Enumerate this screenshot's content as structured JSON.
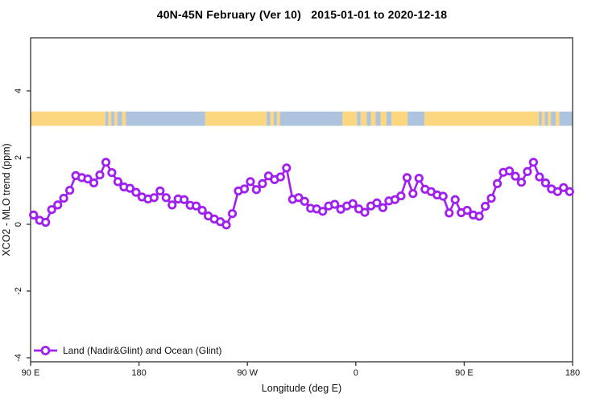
{
  "window": {
    "title": "40N-45N February (Ver 10)   2015-01-01 to 2020-12-18"
  },
  "chart_data": {
    "type": "line",
    "title": "40N-45N February (Ver 10)   2015-01-01 to 2020-12-18",
    "xlabel": "Longitude (deg E)",
    "ylabel": "XCO2 - MLO trend (ppm)",
    "xlim": [
      90,
      540
    ],
    "ylim": [
      -4.6,
      5.6
    ],
    "grid": false,
    "x_ticks": [
      {
        "lon": 90,
        "label": "90 E"
      },
      {
        "lon": 180,
        "label": "180"
      },
      {
        "lon": 270,
        "label": "90 W"
      },
      {
        "lon": 360,
        "label": "0"
      },
      {
        "lon": 450,
        "label": "90 E"
      },
      {
        "lon": 540,
        "label": "180"
      }
    ],
    "y_ticks": [
      {
        "value": 4,
        "label": "4"
      },
      {
        "value": 2,
        "label": "2"
      },
      {
        "value": 0,
        "label": "0"
      },
      {
        "value": -2,
        "label": "-2"
      },
      {
        "value": -4,
        "label": "-4"
      }
    ],
    "legend": {
      "position": "bottom-left",
      "entries": [
        {
          "label": "Land (Nadir&Glint) and Ocean (Glint)",
          "color": "#A020F0",
          "marker": "open-circle"
        }
      ]
    },
    "colors": {
      "series": "#A020F0",
      "land": "#FCD77F",
      "ocean": "#AEC3DE",
      "axis": "#333333",
      "text": "#111111"
    },
    "map_strip": {
      "description": "land/ocean strip for 40N-45N latitude band",
      "y_range_ppm": [
        2.95,
        3.38
      ],
      "segments": [
        {
          "from": 90,
          "to": 152,
          "type": "land"
        },
        {
          "from": 152,
          "to": 154.5,
          "type": "ocean"
        },
        {
          "from": 154.5,
          "to": 157,
          "type": "land"
        },
        {
          "from": 157,
          "to": 159.5,
          "type": "ocean"
        },
        {
          "from": 159.5,
          "to": 162,
          "type": "land"
        },
        {
          "from": 162,
          "to": 166,
          "type": "ocean"
        },
        {
          "from": 166,
          "to": 169,
          "type": "land"
        },
        {
          "from": 169,
          "to": 235,
          "type": "ocean"
        },
        {
          "from": 235,
          "to": 286,
          "type": "land"
        },
        {
          "from": 286,
          "to": 289,
          "type": "ocean"
        },
        {
          "from": 289,
          "to": 292,
          "type": "land"
        },
        {
          "from": 292,
          "to": 294.5,
          "type": "ocean"
        },
        {
          "from": 294.5,
          "to": 297,
          "type": "land"
        },
        {
          "from": 297,
          "to": 349,
          "type": "ocean"
        },
        {
          "from": 349,
          "to": 361,
          "type": "land"
        },
        {
          "from": 361,
          "to": 364,
          "type": "ocean"
        },
        {
          "from": 364,
          "to": 369,
          "type": "land"
        },
        {
          "from": 369,
          "to": 372.5,
          "type": "ocean"
        },
        {
          "from": 372.5,
          "to": 376.5,
          "type": "land"
        },
        {
          "from": 376.5,
          "to": 380.5,
          "type": "ocean"
        },
        {
          "from": 380.5,
          "to": 385.5,
          "type": "land"
        },
        {
          "from": 385.5,
          "to": 389.5,
          "type": "ocean"
        },
        {
          "from": 389.5,
          "to": 403,
          "type": "land"
        },
        {
          "from": 403,
          "to": 417,
          "type": "ocean"
        },
        {
          "from": 417,
          "to": 512,
          "type": "land"
        },
        {
          "from": 512,
          "to": 514.5,
          "type": "ocean"
        },
        {
          "from": 514.5,
          "to": 517,
          "type": "land"
        },
        {
          "from": 517,
          "to": 519.5,
          "type": "ocean"
        },
        {
          "from": 519.5,
          "to": 522,
          "type": "land"
        },
        {
          "from": 522,
          "to": 526,
          "type": "ocean"
        },
        {
          "from": 526,
          "to": 529,
          "type": "land"
        },
        {
          "from": 529,
          "to": 540,
          "type": "ocean"
        }
      ]
    },
    "series": [
      {
        "name": "Land (Nadir&Glint) and Ocean (Glint)",
        "marker": "open-circle",
        "lon_start_deg_e": 92.5,
        "lon_step_deg": 5,
        "values": [
          0.28,
          0.12,
          0.06,
          0.44,
          0.58,
          0.78,
          1.02,
          1.46,
          1.4,
          1.36,
          1.24,
          1.48,
          1.86,
          1.55,
          1.28,
          1.12,
          1.08,
          0.96,
          0.82,
          0.76,
          0.8,
          1.0,
          0.8,
          0.58,
          0.76,
          0.74,
          0.57,
          0.55,
          0.42,
          0.25,
          0.16,
          0.08,
          -0.02,
          0.32,
          1.0,
          1.06,
          1.28,
          1.04,
          1.22,
          1.45,
          1.34,
          1.42,
          1.69,
          0.75,
          0.8,
          0.69,
          0.48,
          0.46,
          0.39,
          0.55,
          0.6,
          0.45,
          0.55,
          0.62,
          0.46,
          0.36,
          0.55,
          0.64,
          0.5,
          0.7,
          0.74,
          0.85,
          1.4,
          0.92,
          1.38,
          1.05,
          0.98,
          0.88,
          0.84,
          0.34,
          0.74,
          0.35,
          0.42,
          0.28,
          0.24,
          0.54,
          0.78,
          1.22,
          1.56,
          1.6,
          1.44,
          1.26,
          1.58,
          1.86,
          1.42,
          1.24,
          1.06,
          0.98,
          1.1,
          0.98
        ]
      }
    ]
  }
}
